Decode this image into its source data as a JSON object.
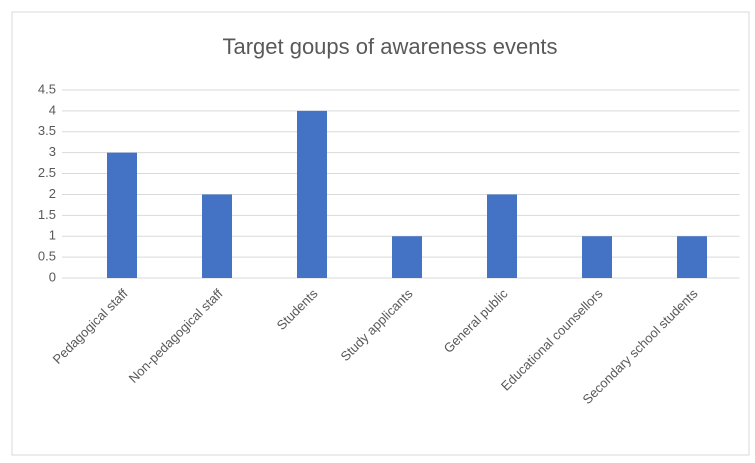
{
  "chart_data": {
    "type": "bar",
    "title": "Target goups of awareness events",
    "categories": [
      "Pedagogical staff",
      "Non-pedagogical staff",
      "Students",
      "Study applicants",
      "General public",
      "Educational counsellors",
      "Secondary school students"
    ],
    "values": [
      3,
      2,
      4,
      1,
      2,
      1,
      1
    ],
    "color": "#4472c4",
    "ylim": [
      0,
      4.5
    ],
    "yticks": [
      0,
      0.5,
      1,
      1.5,
      2,
      2.5,
      3,
      3.5,
      4,
      4.5
    ],
    "grid": true
  }
}
